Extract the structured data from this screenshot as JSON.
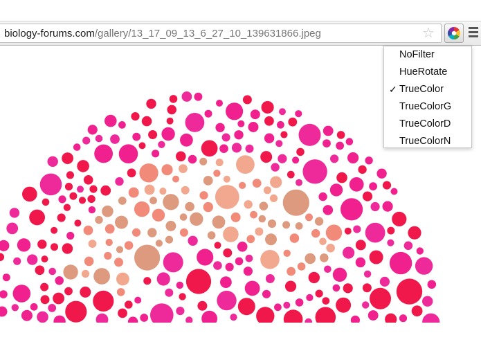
{
  "browser": {
    "url_host": "biology-forums.com",
    "url_path": "/gallery/13_17_09_13_6_27_10_139631866.jpeg",
    "bookmark_icon": "star-icon",
    "extension_icon": "color-wheel-icon",
    "menu_icon": "hamburger-menu-icon"
  },
  "filter_menu": {
    "items": [
      {
        "label": "NoFilter",
        "checked": false
      },
      {
        "label": "HueRotate",
        "checked": false
      },
      {
        "label": "TrueColor",
        "checked": true
      },
      {
        "label": "TrueColorG",
        "checked": false
      },
      {
        "label": "TrueColorD",
        "checked": false
      },
      {
        "label": "TrueColorN",
        "checked": false
      }
    ],
    "check_glyph": "✓"
  },
  "image": {
    "kind": "color-blindness test plate",
    "colors": {
      "pink": "#f0218e",
      "red": "#f0184b",
      "magenta": "#ee2a9a",
      "salmon": "#f28a7a",
      "tan": "#dd9a7e",
      "peach": "#f2a78f"
    }
  }
}
